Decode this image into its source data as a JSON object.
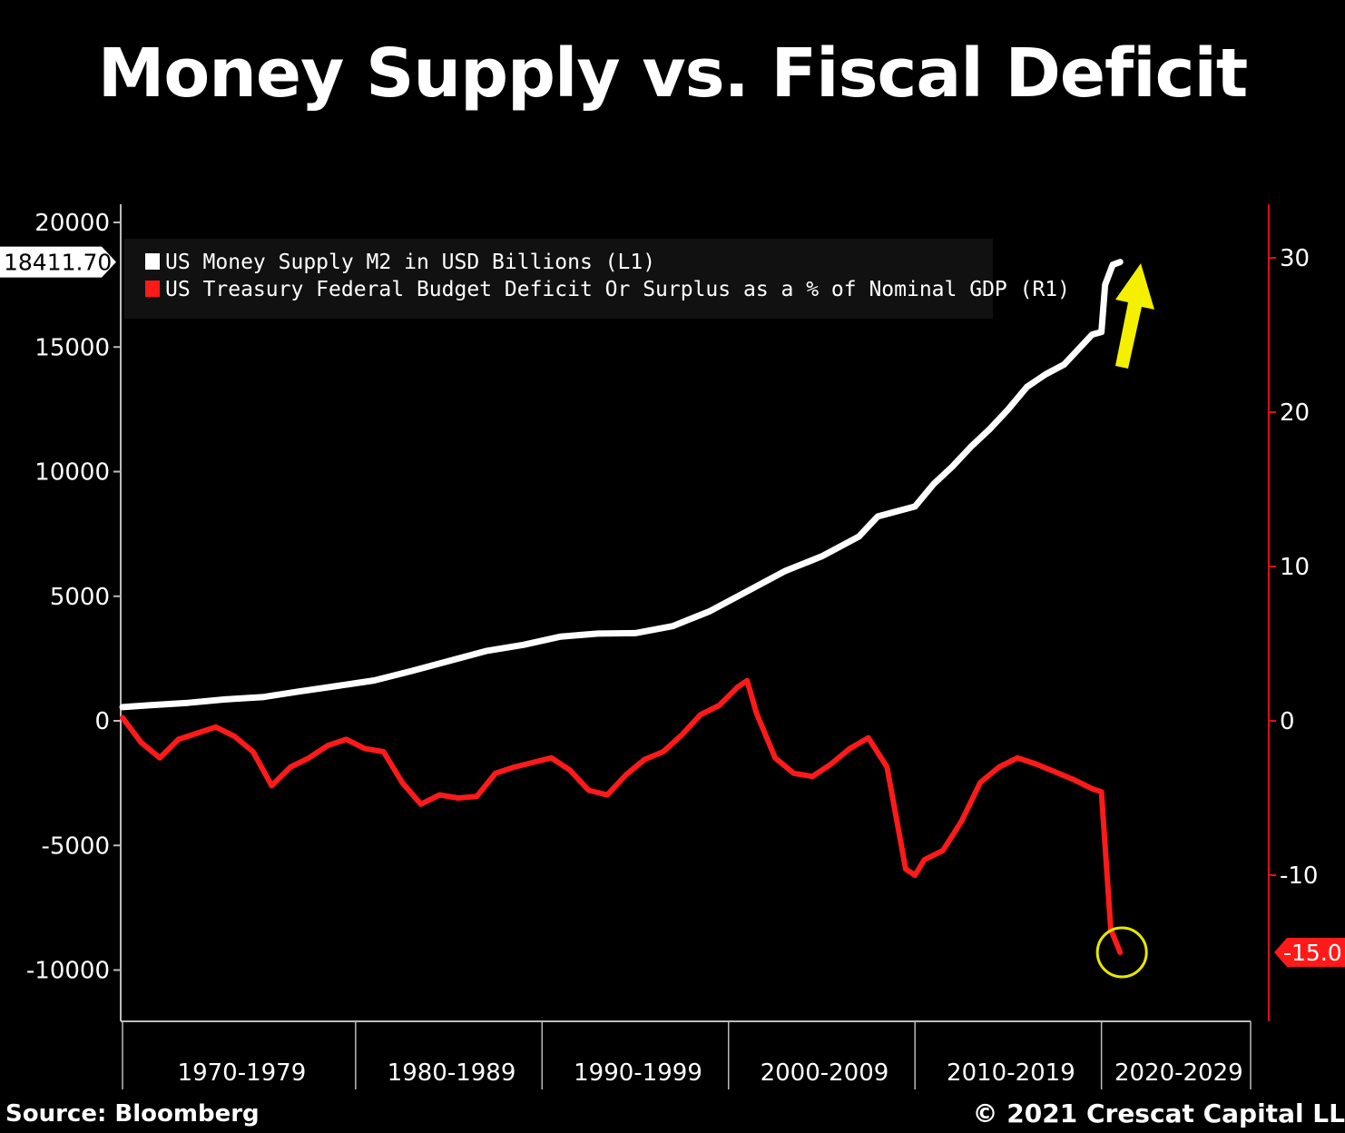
{
  "title": "Money Supply vs. Fiscal Deficit",
  "source": "Source: Bloomberg",
  "copyright": "© 2021 Crescat Capital LL",
  "colors": {
    "background": "#000000",
    "m2": "#ffffff",
    "deficit": "#ff1a1a",
    "right_axis": "#e01010",
    "arrow": "#f5f000",
    "circle": "#e8e800"
  },
  "chart_data": {
    "type": "line",
    "title": "Money Supply vs. Fiscal Deficit",
    "x_range": [
      1967.5,
      2028.0
    ],
    "x_categories": [
      "1970-1979",
      "1980-1989",
      "1990-1999",
      "2000-2009",
      "2010-2019",
      "2020-2029"
    ],
    "left_axis": {
      "ylim": [
        -11000,
        20000
      ],
      "ticks": [
        20000,
        15000,
        10000,
        5000,
        0,
        -5000,
        -10000
      ]
    },
    "right_axis": {
      "ylim": [
        -20,
        33
      ],
      "ticks": [
        30,
        20,
        10,
        0,
        -10
      ]
    },
    "legend": {
      "placement": "top-left"
    },
    "series": [
      {
        "name": "US Money Supply M2 in USD Billions (L1)",
        "axis": "left",
        "last_value_label": "18411.70",
        "points": [
          [
            1967.5,
            550
          ],
          [
            1969,
            630
          ],
          [
            1971,
            720
          ],
          [
            1973,
            860
          ],
          [
            1975,
            950
          ],
          [
            1977,
            1180
          ],
          [
            1979,
            1400
          ],
          [
            1981,
            1620
          ],
          [
            1983,
            2000
          ],
          [
            1985,
            2400
          ],
          [
            1987,
            2800
          ],
          [
            1989,
            3050
          ],
          [
            1991,
            3380
          ],
          [
            1993,
            3500
          ],
          [
            1995,
            3520
          ],
          [
            1997,
            3800
          ],
          [
            1999,
            4400
          ],
          [
            2001,
            5200
          ],
          [
            2003,
            6000
          ],
          [
            2005,
            6600
          ],
          [
            2007,
            7400
          ],
          [
            2008,
            8200
          ],
          [
            2009,
            8400
          ],
          [
            2010,
            8600
          ],
          [
            2011,
            9500
          ],
          [
            2012,
            10200
          ],
          [
            2013,
            11000
          ],
          [
            2014,
            11700
          ],
          [
            2015,
            12500
          ],
          [
            2016,
            13400
          ],
          [
            2017,
            13900
          ],
          [
            2018,
            14300
          ],
          [
            2019,
            15100
          ],
          [
            2019.5,
            15500
          ],
          [
            2020.0,
            15600
          ],
          [
            2020.2,
            17500
          ],
          [
            2020.6,
            18300
          ],
          [
            2021.0,
            18411.7
          ]
        ]
      },
      {
        "name": "US Treasury Federal Budget Deficit Or Surplus as a % of Nominal GDP (R1)",
        "axis": "right",
        "last_value_label": "-15.0",
        "points": [
          [
            1967.5,
            0.2
          ],
          [
            1968.5,
            -1.4
          ],
          [
            1969.5,
            -2.4
          ],
          [
            1970.5,
            -1.2
          ],
          [
            1971.5,
            -0.8
          ],
          [
            1972.5,
            -0.4
          ],
          [
            1973.5,
            -1.0
          ],
          [
            1974.5,
            -2.0
          ],
          [
            1975.5,
            -4.2
          ],
          [
            1976.5,
            -3.0
          ],
          [
            1977.5,
            -2.4
          ],
          [
            1978.5,
            -1.6
          ],
          [
            1979.5,
            -1.2
          ],
          [
            1980.5,
            -1.8
          ],
          [
            1981.5,
            -2.0
          ],
          [
            1982.5,
            -4.0
          ],
          [
            1983.5,
            -5.4
          ],
          [
            1984.5,
            -4.8
          ],
          [
            1985.5,
            -5.0
          ],
          [
            1986.5,
            -4.9
          ],
          [
            1987.5,
            -3.4
          ],
          [
            1988.5,
            -3.0
          ],
          [
            1989.5,
            -2.7
          ],
          [
            1990.5,
            -2.4
          ],
          [
            1991.5,
            -3.2
          ],
          [
            1992.5,
            -4.5
          ],
          [
            1993.5,
            -4.8
          ],
          [
            1994.5,
            -3.5
          ],
          [
            1995.5,
            -2.5
          ],
          [
            1996.5,
            -2.0
          ],
          [
            1997.5,
            -0.9
          ],
          [
            1998.5,
            0.4
          ],
          [
            1999.5,
            1.0
          ],
          [
            2000.5,
            2.2
          ],
          [
            2001.0,
            2.6
          ],
          [
            2001.5,
            0.5
          ],
          [
            2002.5,
            -2.4
          ],
          [
            2003.5,
            -3.4
          ],
          [
            2004.5,
            -3.6
          ],
          [
            2005.5,
            -2.8
          ],
          [
            2006.5,
            -1.8
          ],
          [
            2007.5,
            -1.1
          ],
          [
            2008.5,
            -3.0
          ],
          [
            2009.5,
            -9.6
          ],
          [
            2010.0,
            -10.0
          ],
          [
            2010.5,
            -9.0
          ],
          [
            2011.5,
            -8.4
          ],
          [
            2012.5,
            -6.5
          ],
          [
            2013.5,
            -4.0
          ],
          [
            2014.5,
            -3.0
          ],
          [
            2015.5,
            -2.4
          ],
          [
            2016.5,
            -2.8
          ],
          [
            2017.5,
            -3.3
          ],
          [
            2018.5,
            -3.8
          ],
          [
            2019.5,
            -4.4
          ],
          [
            2020.0,
            -4.6
          ],
          [
            2020.5,
            -13.5
          ],
          [
            2021.0,
            -15.0
          ]
        ]
      }
    ]
  }
}
